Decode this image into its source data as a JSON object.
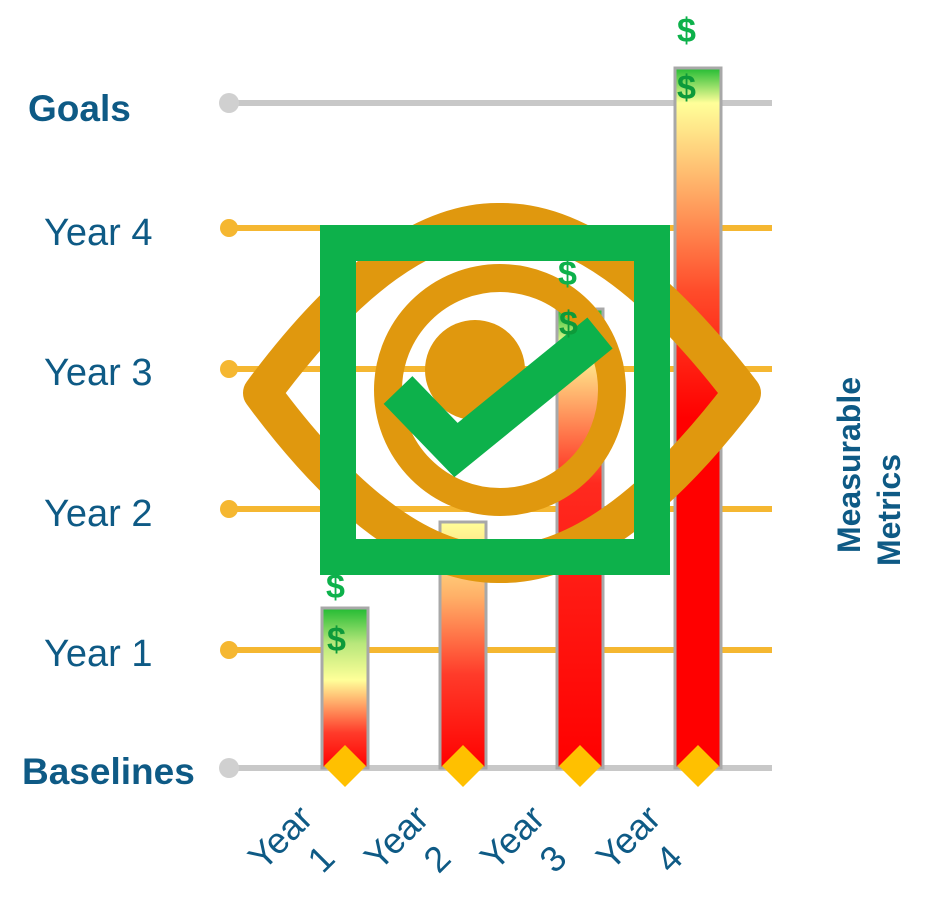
{
  "labels": {
    "goals": "Goals",
    "year4": "Year 4",
    "year3": "Year 3",
    "year2": "Year 2",
    "year1": "Year 1",
    "baselines": "Baselines"
  },
  "side_title": {
    "line1": "Measurable",
    "line2": "Metrics"
  },
  "dollar_sign": "$",
  "columns": [
    {
      "label_line1": "Year",
      "label_line2": "1"
    },
    {
      "label_line1": "Year",
      "label_line2": "2"
    },
    {
      "label_line1": "Year",
      "label_line2": "3"
    },
    {
      "label_line1": "Year",
      "label_line2": "4"
    }
  ],
  "icons": [
    "eye-icon",
    "checkbox-check-icon",
    "diamond-marker-icon"
  ],
  "colors": {
    "label_text": "#0e5a85",
    "level_line": "#f5b731",
    "goal_line": "#c8c8c8",
    "eye": "#e0980e",
    "check": "#0db14b",
    "diamond": "#ffc000",
    "bar_top": "#22bb33",
    "bar_mid": "#ffff99",
    "bar_bottom": "#ff0000"
  }
}
